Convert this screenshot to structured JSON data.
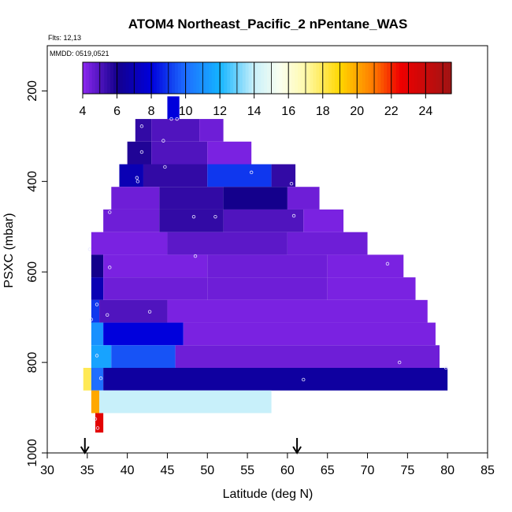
{
  "chart_data": {
    "type": "heatmap",
    "title": "ATOM4 Northeast_Pacific_2 nPentane_WAS",
    "flights_label": "Flts: 12,13",
    "dates_label": "MMDD: 0519,0521",
    "xlabel": "Latitude (deg N)",
    "ylabel": "PSXC (mbar)",
    "xlim": [
      30,
      85
    ],
    "ylim": [
      1000,
      100
    ],
    "x_ticks": [
      30,
      35,
      40,
      45,
      50,
      55,
      60,
      65,
      70,
      75,
      80,
      85
    ],
    "y_ticks": [
      200,
      400,
      600,
      800,
      1000
    ],
    "colorbar": {
      "range": [
        4,
        25.5
      ],
      "ticks": [
        4,
        6,
        8,
        10,
        12,
        14,
        16,
        18,
        20,
        22,
        24
      ]
    },
    "flight_arrows_lat": [
      34.7,
      61.2
    ],
    "curtain": [
      {
        "p_top": 212,
        "p_bot": 262,
        "cells": [
          [
            45,
            46.5,
            8
          ]
        ]
      },
      {
        "p_top": 262,
        "p_bot": 312,
        "cells": [
          [
            41,
            43,
            5.5
          ],
          [
            43,
            49,
            5
          ],
          [
            49,
            52,
            4.5
          ]
        ]
      },
      {
        "p_top": 312,
        "p_bot": 362,
        "cells": [
          [
            40,
            43,
            5.8
          ],
          [
            43,
            50,
            5
          ],
          [
            50,
            55.5,
            4.3
          ]
        ]
      },
      {
        "p_top": 362,
        "p_bot": 412,
        "cells": [
          [
            39,
            42,
            7
          ],
          [
            42,
            50,
            5.5
          ],
          [
            50,
            58,
            9
          ],
          [
            58,
            61,
            5.5
          ]
        ]
      },
      {
        "p_top": 412,
        "p_bot": 462,
        "cells": [
          [
            38,
            44,
            4.5
          ],
          [
            44,
            52,
            5.5
          ],
          [
            52,
            60,
            6
          ],
          [
            60,
            64,
            4.5
          ]
        ]
      },
      {
        "p_top": 462,
        "p_bot": 512,
        "cells": [
          [
            37,
            44,
            4.5
          ],
          [
            44,
            52,
            5.5
          ],
          [
            52,
            62,
            5
          ],
          [
            62,
            67,
            4.3
          ]
        ]
      },
      {
        "p_top": 512,
        "p_bot": 562,
        "cells": [
          [
            35.5,
            45,
            4.3
          ],
          [
            45,
            60,
            4.8
          ],
          [
            60,
            70,
            4.5
          ]
        ]
      },
      {
        "p_top": 562,
        "p_bot": 612,
        "cells": [
          [
            35.5,
            37,
            6
          ],
          [
            37,
            50,
            4.3
          ],
          [
            50,
            65,
            4.5
          ],
          [
            65,
            74.5,
            4.3
          ]
        ]
      },
      {
        "p_top": 612,
        "p_bot": 662,
        "cells": [
          [
            35.5,
            37,
            7
          ],
          [
            37,
            50,
            4.5
          ],
          [
            50,
            65,
            4.5
          ],
          [
            65,
            76,
            4.3
          ]
        ]
      },
      {
        "p_top": 662,
        "p_bot": 712,
        "cells": [
          [
            35.5,
            36.5,
            9
          ],
          [
            36.5,
            45,
            5
          ],
          [
            45,
            77.5,
            4.3
          ]
        ]
      },
      {
        "p_top": 712,
        "p_bot": 762,
        "cells": [
          [
            35.5,
            37,
            11
          ],
          [
            37,
            47,
            8
          ],
          [
            47,
            78.5,
            4.3
          ]
        ]
      },
      {
        "p_top": 762,
        "p_bot": 812,
        "cells": [
          [
            35.5,
            38,
            11.5
          ],
          [
            38,
            46,
            9.5
          ],
          [
            46,
            79,
            4.5
          ]
        ]
      },
      {
        "p_top": 812,
        "p_bot": 862,
        "cells": [
          [
            34.5,
            35.5,
            18
          ],
          [
            35.5,
            37,
            10
          ],
          [
            37,
            80,
            6.5
          ]
        ]
      },
      {
        "p_top": 862,
        "p_bot": 912,
        "cells": [
          [
            35.5,
            36.5,
            20
          ],
          [
            36.5,
            58,
            14
          ]
        ]
      },
      {
        "p_top": 912,
        "p_bot": 955,
        "cells": [
          [
            36,
            37,
            23
          ]
        ]
      }
    ],
    "samples": [
      {
        "lat": 45.5,
        "p": 262
      },
      {
        "lat": 46.2,
        "p": 262
      },
      {
        "lat": 41.8,
        "p": 278
      },
      {
        "lat": 44.5,
        "p": 310
      },
      {
        "lat": 41.8,
        "p": 335
      },
      {
        "lat": 44.7,
        "p": 368
      },
      {
        "lat": 41.2,
        "p": 392
      },
      {
        "lat": 41.3,
        "p": 400
      },
      {
        "lat": 55.5,
        "p": 380
      },
      {
        "lat": 60.5,
        "p": 405
      },
      {
        "lat": 37.8,
        "p": 468
      },
      {
        "lat": 48.3,
        "p": 478
      },
      {
        "lat": 51.0,
        "p": 478
      },
      {
        "lat": 60.8,
        "p": 476
      },
      {
        "lat": 35.3,
        "p": 550
      },
      {
        "lat": 48.5,
        "p": 565
      },
      {
        "lat": 37.8,
        "p": 590
      },
      {
        "lat": 72.5,
        "p": 582
      },
      {
        "lat": 36.2,
        "p": 672
      },
      {
        "lat": 42.8,
        "p": 688
      },
      {
        "lat": 37.5,
        "p": 695
      },
      {
        "lat": 35.5,
        "p": 705
      },
      {
        "lat": 36.2,
        "p": 785
      },
      {
        "lat": 74.0,
        "p": 800
      },
      {
        "lat": 79.8,
        "p": 812
      },
      {
        "lat": 36.7,
        "p": 835
      },
      {
        "lat": 62.0,
        "p": 838
      },
      {
        "lat": 36.0,
        "p": 925
      },
      {
        "lat": 36.3,
        "p": 945
      }
    ]
  }
}
